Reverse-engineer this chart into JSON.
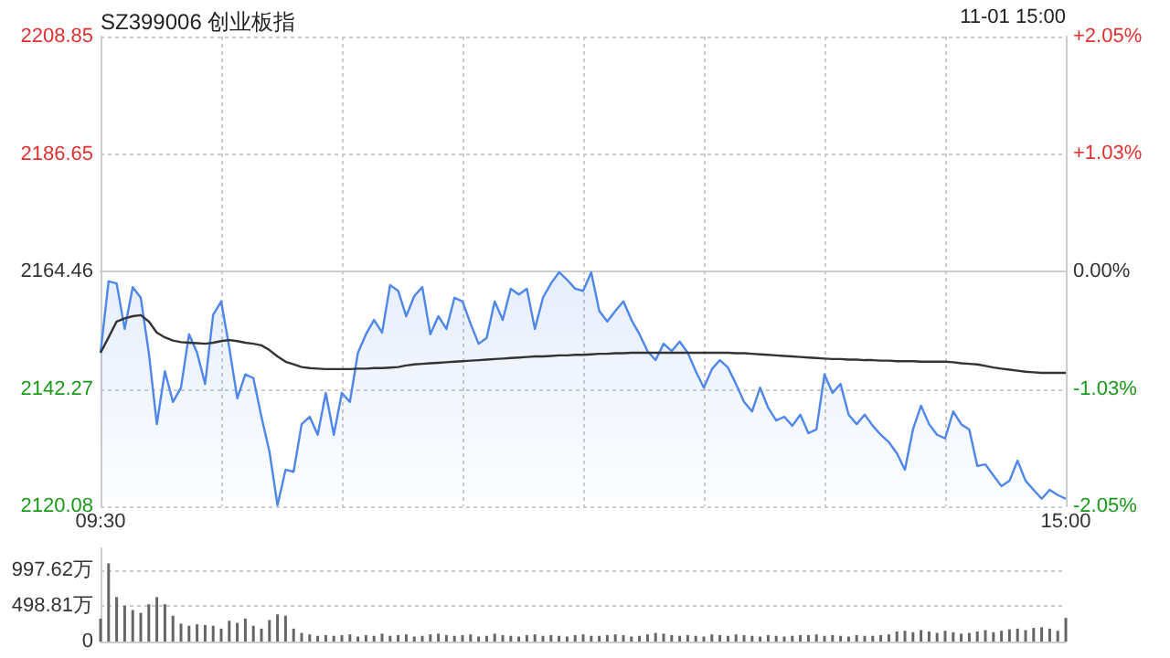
{
  "chart_data": [
    {
      "type": "area",
      "title": "SZ399006 创业板指",
      "annotations": [
        "11-01 15:00"
      ],
      "categories": [
        "09:30",
        null,
        null,
        null,
        null,
        null,
        null,
        null,
        null,
        null,
        null,
        null,
        null,
        null,
        null,
        null,
        null,
        null,
        null,
        null,
        null,
        null,
        null,
        null,
        null,
        null,
        null,
        null,
        null,
        null,
        null,
        null,
        null,
        null,
        null,
        null,
        null,
        null,
        null,
        null,
        null,
        null,
        null,
        null,
        null,
        null,
        null,
        null,
        null,
        null,
        null,
        null,
        null,
        null,
        null,
        null,
        null,
        null,
        null,
        null,
        null,
        null,
        null,
        null,
        null,
        null,
        null,
        null,
        null,
        null,
        null,
        null,
        null,
        null,
        null,
        null,
        null,
        null,
        null,
        null,
        null,
        null,
        null,
        null,
        null,
        null,
        null,
        null,
        null,
        null,
        null,
        null,
        null,
        null,
        null,
        null,
        null,
        null,
        null,
        null,
        null,
        null,
        null,
        null,
        null,
        null,
        null,
        null,
        null,
        null,
        null,
        null,
        null,
        null,
        null,
        null,
        null,
        null,
        null,
        null,
        "15:00"
      ],
      "ylim": [
        2120.08,
        2208.85
      ],
      "yticks": [
        2120.08,
        2142.27,
        2164.46,
        2186.65,
        2208.85
      ],
      "y2lim": [
        -2.05,
        2.05
      ],
      "y2ticks": [
        {
          "value": -2.05,
          "label": "-2.05%"
        },
        {
          "value": -1.03,
          "label": "-1.03%"
        },
        {
          "value": 0,
          "label": "0.00%"
        },
        {
          "value": 1.03,
          "label": "+1.03%"
        },
        {
          "value": 2.05,
          "label": "+2.05%"
        }
      ],
      "grid": true,
      "series": [
        {
          "color": "#4f86ec",
          "values": [
            2149.1,
            2162.6,
            2162.2,
            2153.6,
            2161.5,
            2159.5,
            2149.1,
            2135.6,
            2145.6,
            2139.8,
            2142.5,
            2152.6,
            2149.1,
            2143.2,
            2156.3,
            2158.8,
            2150.1,
            2140.5,
            2145.0,
            2144.3,
            2137.0,
            2130.4,
            2120.3,
            2127.0,
            2126.6,
            2135.6,
            2137.0,
            2133.6,
            2141.5,
            2133.6,
            2141.5,
            2139.8,
            2149.1,
            2152.6,
            2155.3,
            2152.9,
            2161.9,
            2160.8,
            2156.0,
            2159.8,
            2161.5,
            2152.6,
            2156.0,
            2153.6,
            2159.5,
            2158.8,
            2154.6,
            2150.8,
            2151.9,
            2158.8,
            2155.3,
            2161.2,
            2160.1,
            2161.2,
            2153.6,
            2159.5,
            2162.2,
            2164.3,
            2162.9,
            2161.2,
            2160.8,
            2164.3,
            2157.0,
            2155.0,
            2157.0,
            2158.8,
            2155.3,
            2152.6,
            2149.4,
            2147.7,
            2150.8,
            2149.4,
            2151.2,
            2149.1,
            2145.6,
            2142.5,
            2146.0,
            2147.7,
            2146.3,
            2143.2,
            2139.8,
            2138.0,
            2142.5,
            2138.7,
            2136.3,
            2137.0,
            2135.3,
            2137.4,
            2133.9,
            2134.6,
            2145.0,
            2141.5,
            2143.2,
            2137.4,
            2135.6,
            2137.4,
            2135.3,
            2133.6,
            2132.2,
            2130.1,
            2127.0,
            2134.6,
            2139.1,
            2135.6,
            2133.6,
            2132.9,
            2138.0,
            2135.6,
            2134.6,
            2127.7,
            2128.0,
            2125.9,
            2123.9,
            2124.9,
            2128.7,
            2124.9,
            2123.2,
            2121.5,
            2123.2,
            2122.2,
            2121.5
          ]
        },
        {
          "type": "line",
          "color": "#333333",
          "values": [
            2149.1,
            2152.0,
            2155.0,
            2155.6,
            2156.0,
            2156.2,
            2155.0,
            2152.9,
            2152.0,
            2151.4,
            2151.1,
            2151.0,
            2150.9,
            2150.8,
            2151.0,
            2151.3,
            2151.5,
            2151.3,
            2151.0,
            2150.8,
            2150.5,
            2149.6,
            2148.4,
            2147.4,
            2146.9,
            2146.4,
            2146.2,
            2146.1,
            2146.0,
            2146.0,
            2146.0,
            2146.0,
            2146.1,
            2146.1,
            2146.2,
            2146.2,
            2146.3,
            2146.4,
            2146.7,
            2146.9,
            2147.0,
            2147.1,
            2147.2,
            2147.3,
            2147.4,
            2147.5,
            2147.6,
            2147.7,
            2147.8,
            2147.9,
            2148.0,
            2148.1,
            2148.2,
            2148.3,
            2148.4,
            2148.4,
            2148.5,
            2148.6,
            2148.6,
            2148.7,
            2148.7,
            2148.8,
            2148.9,
            2148.9,
            2149.0,
            2149.0,
            2149.1,
            2149.1,
            2149.1,
            2149.1,
            2149.1,
            2149.1,
            2149.1,
            2149.1,
            2149.1,
            2149.1,
            2149.1,
            2149.1,
            2149.1,
            2149.0,
            2149.0,
            2148.9,
            2148.8,
            2148.7,
            2148.6,
            2148.5,
            2148.4,
            2148.3,
            2148.2,
            2148.1,
            2148.0,
            2147.9,
            2147.9,
            2147.8,
            2147.8,
            2147.7,
            2147.7,
            2147.6,
            2147.6,
            2147.5,
            2147.5,
            2147.5,
            2147.4,
            2147.4,
            2147.4,
            2147.4,
            2147.3,
            2147.1,
            2147.0,
            2146.9,
            2146.6,
            2146.3,
            2146.1,
            2145.9,
            2145.7,
            2145.5,
            2145.4,
            2145.3,
            2145.3,
            2145.3,
            2145.3
          ]
        }
      ]
    },
    {
      "type": "bar",
      "categories": [
        null,
        null,
        null,
        null,
        null,
        null,
        null,
        null,
        null,
        null,
        null,
        null,
        null,
        null,
        null,
        null,
        null,
        null,
        null,
        null,
        null,
        null,
        null,
        null,
        null,
        null,
        null,
        null,
        null,
        null,
        null,
        null,
        null,
        null,
        null,
        null,
        null,
        null,
        null,
        null,
        null,
        null,
        null,
        null,
        null,
        null,
        null,
        null,
        null,
        null,
        null,
        null,
        null,
        null,
        null,
        null,
        null,
        null,
        null,
        null,
        null,
        null,
        null,
        null,
        null,
        null,
        null,
        null,
        null,
        null,
        null,
        null,
        null,
        null,
        null,
        null,
        null,
        null,
        null,
        null,
        null,
        null,
        null,
        null,
        null,
        null,
        null,
        null,
        null,
        null,
        null,
        null,
        null,
        null,
        null,
        null,
        null,
        null,
        null,
        null,
        null,
        null,
        null,
        null,
        null,
        null,
        null,
        null,
        null,
        null,
        null,
        null,
        null,
        null,
        null,
        null,
        null,
        null,
        null,
        null,
        null
      ],
      "ylim": [
        0,
        1300
      ],
      "yticks": [
        0,
        {
          "value": 498.81,
          "label": "498.81万"
        },
        {
          "value": 997.62,
          "label": "997.62万"
        }
      ],
      "tick_labels": "y",
      "grid": "y",
      "series": [
        {
          "color": "#666666",
          "values": [
            320,
            1090,
            620,
            500,
            440,
            400,
            520,
            620,
            520,
            360,
            250,
            220,
            240,
            230,
            220,
            180,
            290,
            260,
            320,
            220,
            180,
            300,
            380,
            360,
            180,
            120,
            100,
            80,
            90,
            80,
            90,
            100,
            70,
            90,
            80,
            110,
            80,
            90,
            100,
            70,
            80,
            100,
            110,
            90,
            80,
            90,
            100,
            70,
            80,
            110,
            90,
            80,
            70,
            90,
            100,
            80,
            90,
            80,
            70,
            90,
            100,
            80,
            80,
            90,
            100,
            90,
            70,
            80,
            100,
            120,
            110,
            90,
            80,
            90,
            80,
            70,
            100,
            90,
            80,
            100,
            90,
            80,
            70,
            90,
            80,
            70,
            80,
            90,
            90,
            100,
            80,
            90,
            80,
            70,
            90,
            80,
            80,
            90,
            100,
            140,
            150,
            130,
            160,
            140,
            120,
            150,
            130,
            110,
            120,
            140,
            160,
            130,
            150,
            170,
            180,
            160,
            190,
            200,
            180,
            150,
            330
          ]
        }
      ]
    }
  ]
}
